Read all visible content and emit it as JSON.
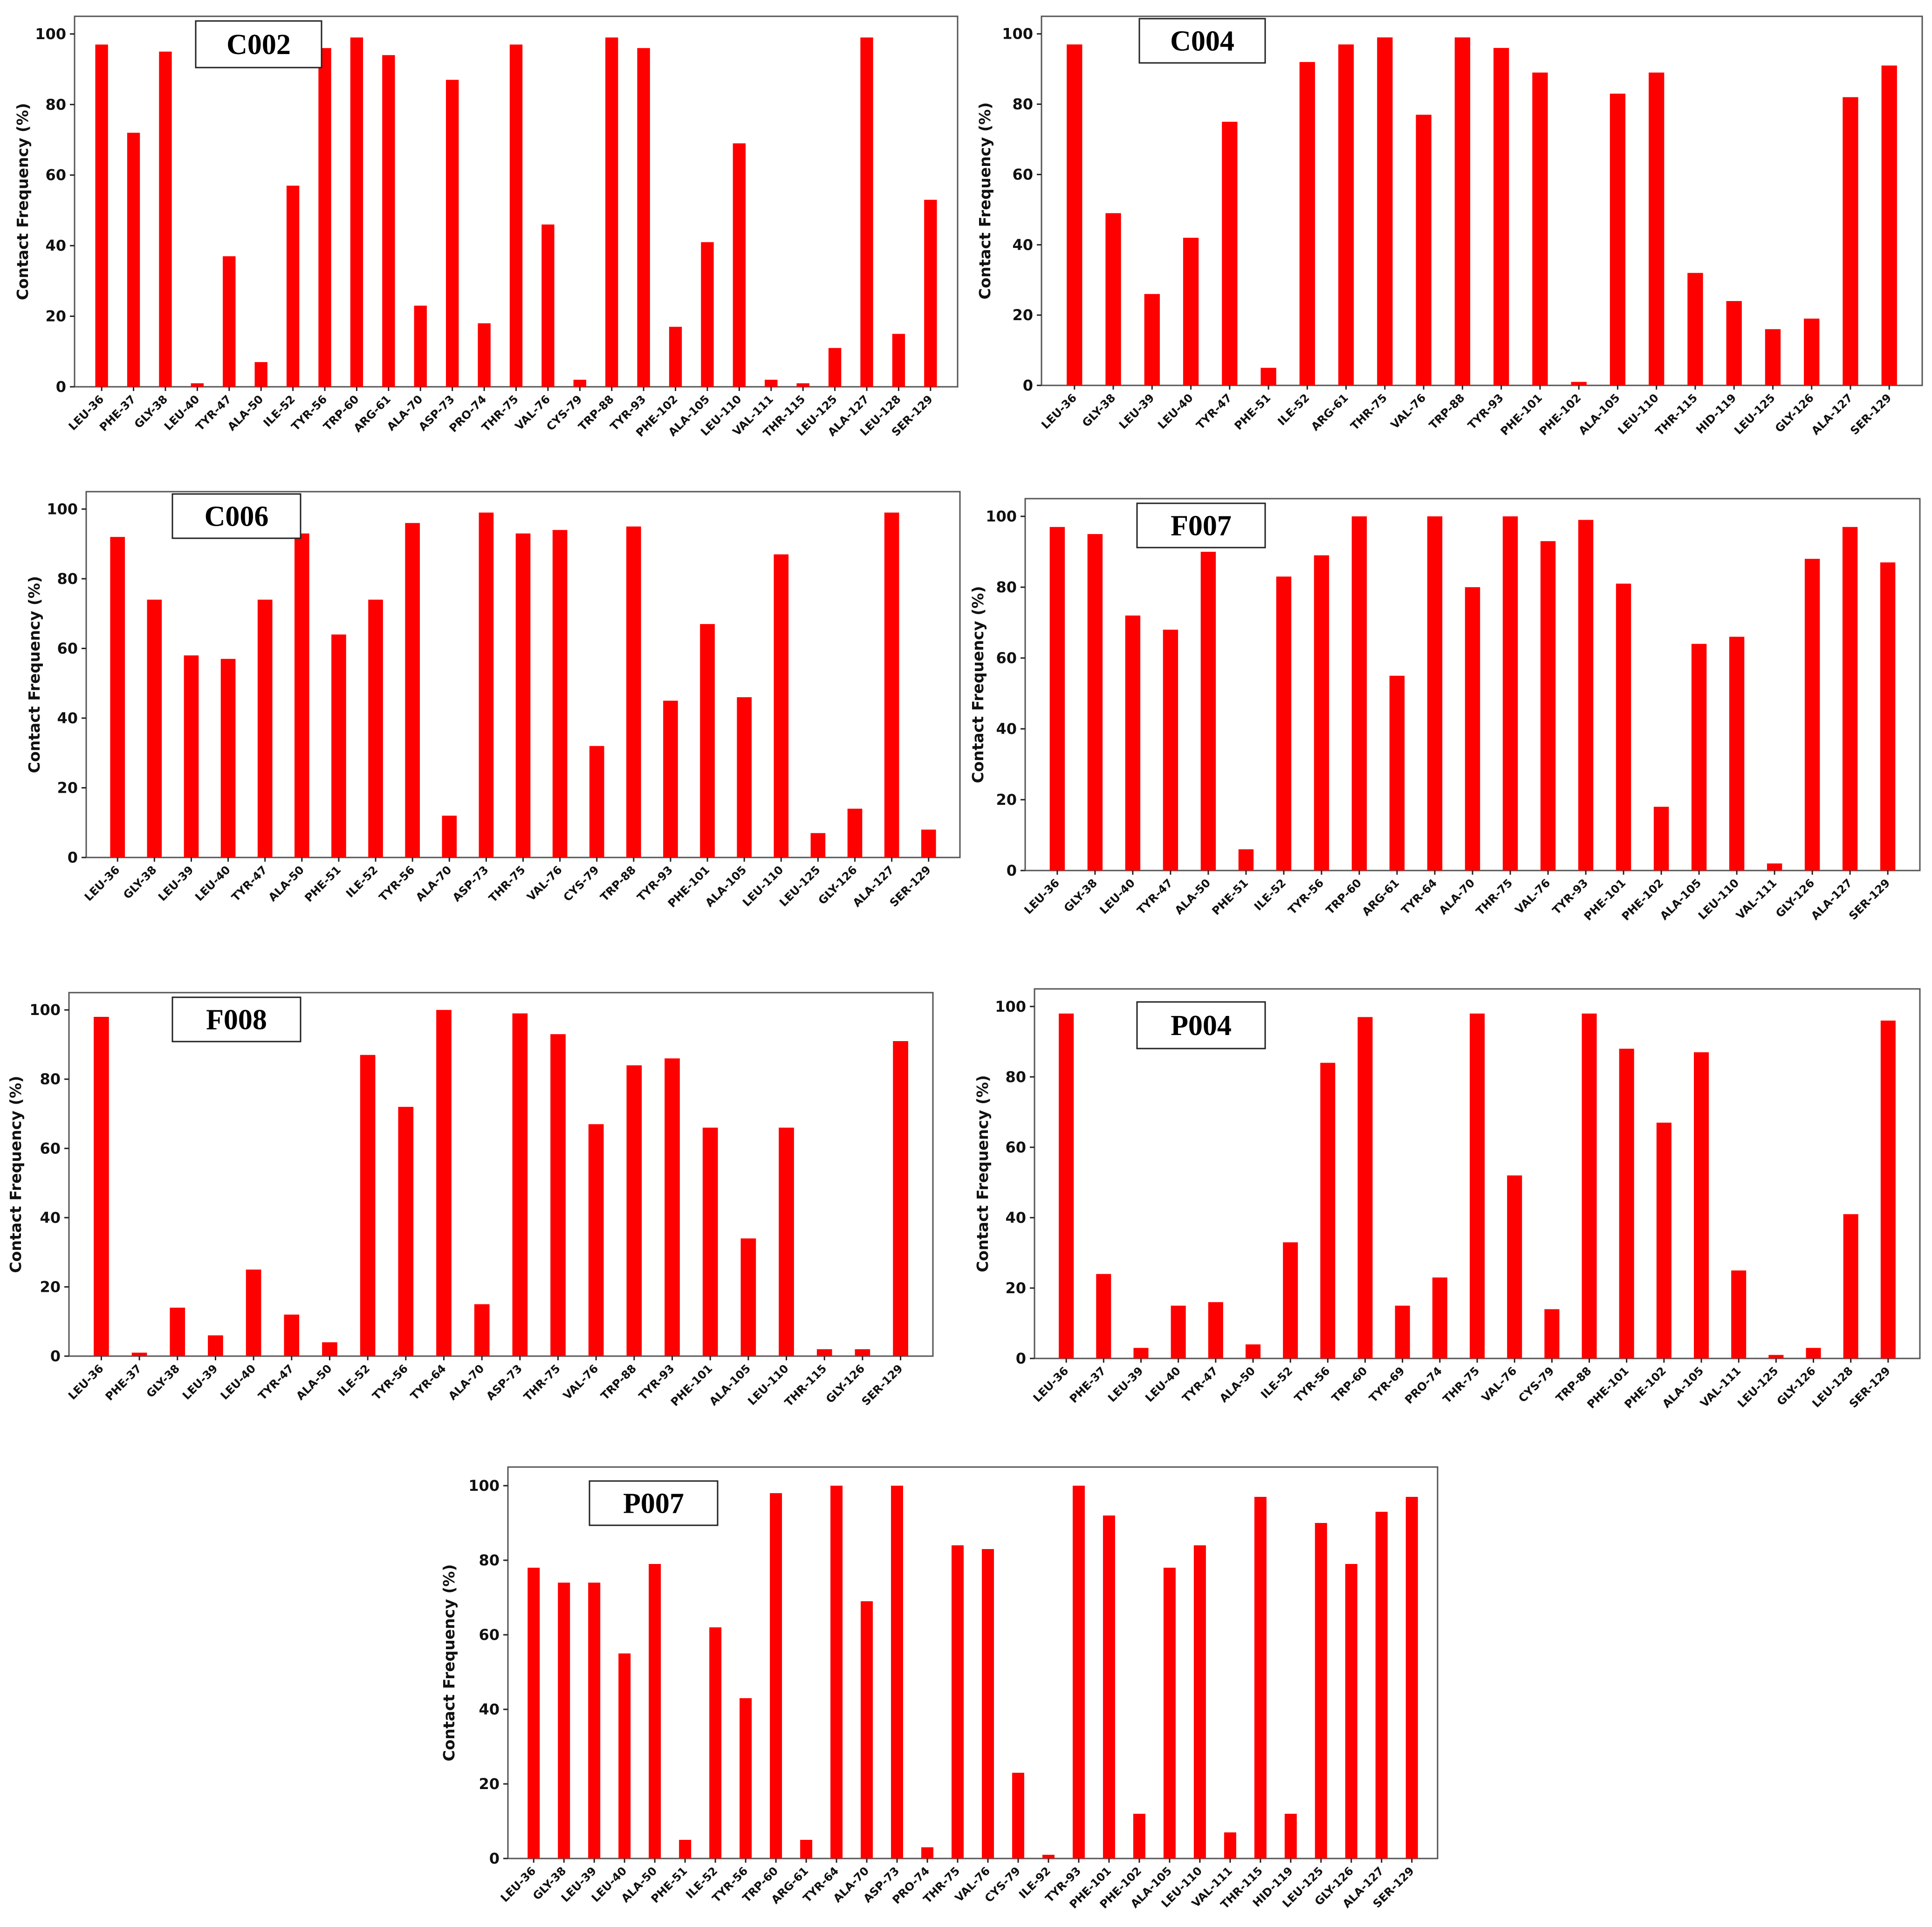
{
  "bar_color": "#ff0000",
  "chart_data": [
    {
      "type": "bar",
      "title": "C002",
      "ylabel": "Contact Frequency (%)",
      "ylim": [
        0,
        105
      ],
      "yticks": [
        0,
        20,
        40,
        60,
        80,
        100
      ],
      "categories": [
        "LEU-36",
        "PHE-37",
        "GLY-38",
        "LEU-40",
        "TYR-47",
        "ALA-50",
        "ILE-52",
        "TYR-56",
        "TRP-60",
        "ARG-61",
        "ALA-70",
        "ASP-73",
        "PRO-74",
        "THR-75",
        "VAL-76",
        "CYS-79",
        "TRP-88",
        "TYR-93",
        "PHE-102",
        "ALA-105",
        "LEU-110",
        "VAL-111",
        "THR-115",
        "LEU-125",
        "ALA-127",
        "LEU-128",
        "SER-129"
      ],
      "values": [
        97,
        72,
        95,
        1,
        37,
        7,
        57,
        96,
        99,
        94,
        23,
        87,
        18,
        97,
        46,
        2,
        99,
        96,
        17,
        41,
        69,
        2,
        1,
        11,
        99,
        15,
        53
      ]
    },
    {
      "type": "bar",
      "title": "C004",
      "ylabel": "Contact Frequency (%)",
      "ylim": [
        0,
        105
      ],
      "yticks": [
        0,
        20,
        40,
        60,
        80,
        100
      ],
      "categories": [
        "LEU-36",
        "GLY-38",
        "LEU-39",
        "LEU-40",
        "TYR-47",
        "PHE-51",
        "ILE-52",
        "ARG-61",
        "THR-75",
        "VAL-76",
        "TRP-88",
        "TYR-93",
        "PHE-101",
        "PHE-102",
        "ALA-105",
        "LEU-110",
        "THR-115",
        "HID-119",
        "LEU-125",
        "GLY-126",
        "ALA-127",
        "SER-129"
      ],
      "values": [
        97,
        49,
        26,
        42,
        75,
        5,
        92,
        97,
        99,
        77,
        99,
        96,
        89,
        1,
        83,
        89,
        32,
        24,
        16,
        19,
        82,
        91
      ]
    },
    {
      "type": "bar",
      "title": "C006",
      "ylabel": "Contact Frequency (%)",
      "ylim": [
        0,
        105
      ],
      "yticks": [
        0,
        20,
        40,
        60,
        80,
        100
      ],
      "categories": [
        "LEU-36",
        "GLY-38",
        "LEU-39",
        "LEU-40",
        "TYR-47",
        "ALA-50",
        "PHE-51",
        "ILE-52",
        "TYR-56",
        "ALA-70",
        "ASP-73",
        "THR-75",
        "VAL-76",
        "CYS-79",
        "TRP-88",
        "TYR-93",
        "PHE-101",
        "ALA-105",
        "LEU-110",
        "LEU-125",
        "GLY-126",
        "ALA-127",
        "SER-129"
      ],
      "values": [
        92,
        74,
        58,
        57,
        74,
        93,
        64,
        74,
        96,
        12,
        99,
        93,
        94,
        32,
        95,
        45,
        67,
        46,
        87,
        7,
        14,
        99,
        8
      ]
    },
    {
      "type": "bar",
      "title": "F007",
      "ylabel": "Contact Frequency (%)",
      "ylim": [
        0,
        105
      ],
      "yticks": [
        0,
        20,
        40,
        60,
        80,
        100
      ],
      "categories": [
        "LEU-36",
        "GLY-38",
        "LEU-40",
        "TYR-47",
        "ALA-50",
        "PHE-51",
        "ILE-52",
        "TYR-56",
        "TRP-60",
        "ARG-61",
        "TYR-64",
        "ALA-70",
        "THR-75",
        "VAL-76",
        "TYR-93",
        "PHE-101",
        "PHE-102",
        "ALA-105",
        "LEU-110",
        "VAL-111",
        "GLY-126",
        "ALA-127",
        "SER-129"
      ],
      "values": [
        97,
        95,
        72,
        68,
        90,
        6,
        83,
        89,
        100,
        55,
        100,
        80,
        100,
        93,
        99,
        81,
        18,
        64,
        66,
        2,
        88,
        97,
        87
      ]
    },
    {
      "type": "bar",
      "title": "F008",
      "ylabel": "Contact Frequency (%)",
      "ylim": [
        0,
        105
      ],
      "yticks": [
        0,
        20,
        40,
        60,
        80,
        100
      ],
      "categories": [
        "LEU-36",
        "PHE-37",
        "GLY-38",
        "LEU-39",
        "LEU-40",
        "TYR-47",
        "ALA-50",
        "ILE-52",
        "TYR-56",
        "TYR-64",
        "ALA-70",
        "ASP-73",
        "THR-75",
        "VAL-76",
        "TRP-88",
        "TYR-93",
        "PHE-101",
        "ALA-105",
        "LEU-110",
        "THR-115",
        "GLY-126",
        "SER-129"
      ],
      "values": [
        98,
        1,
        14,
        6,
        25,
        12,
        4,
        87,
        72,
        100,
        15,
        99,
        93,
        67,
        84,
        86,
        66,
        34,
        66,
        2,
        2,
        91
      ]
    },
    {
      "type": "bar",
      "title": "P004",
      "ylabel": "Contact Frequency (%)",
      "ylim": [
        0,
        105
      ],
      "yticks": [
        0,
        20,
        40,
        60,
        80,
        100
      ],
      "categories": [
        "LEU-36",
        "PHE-37",
        "LEU-39",
        "LEU-40",
        "TYR-47",
        "ALA-50",
        "ILE-52",
        "TYR-56",
        "TRP-60",
        "TYR-69",
        "PRO-74",
        "THR-75",
        "VAL-76",
        "CYS-79",
        "TRP-88",
        "PHE-101",
        "PHE-102",
        "ALA-105",
        "VAL-111",
        "LEU-125",
        "GLY-126",
        "LEU-128",
        "SER-129"
      ],
      "values": [
        98,
        24,
        3,
        15,
        16,
        4,
        33,
        84,
        97,
        15,
        23,
        98,
        52,
        14,
        98,
        88,
        67,
        87,
        25,
        1,
        3,
        41,
        96
      ]
    },
    {
      "type": "bar",
      "title": "P007",
      "ylabel": "Contact Frequency (%)",
      "ylim": [
        0,
        105
      ],
      "yticks": [
        0,
        20,
        40,
        60,
        80,
        100
      ],
      "categories": [
        "LEU-36",
        "GLY-38",
        "LEU-39",
        "LEU-40",
        "ALA-50",
        "PHE-51",
        "ILE-52",
        "TYR-56",
        "TRP-60",
        "ARG-61",
        "TYR-64",
        "ALA-70",
        "ASP-73",
        "PRO-74",
        "THR-75",
        "VAL-76",
        "CYS-79",
        "ILE-92",
        "TYR-93",
        "PHE-101",
        "PHE-102",
        "ALA-105",
        "LEU-110",
        "VAL-111",
        "THR-115",
        "HID-119",
        "LEU-125",
        "GLY-126",
        "ALA-127",
        "SER-129"
      ],
      "values": [
        78,
        74,
        74,
        55,
        79,
        5,
        62,
        43,
        98,
        5,
        100,
        69,
        100,
        3,
        84,
        83,
        23,
        1,
        100,
        92,
        12,
        78,
        84,
        7,
        97,
        12,
        90,
        79,
        93,
        97
      ]
    }
  ]
}
